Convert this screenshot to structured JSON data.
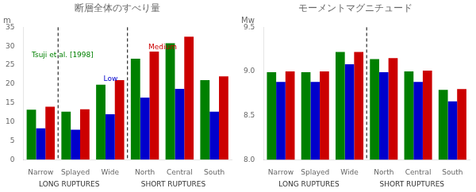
{
  "chart_data": [
    {
      "type": "bar",
      "title": "断層全体のすべり量",
      "ylabel": "m",
      "categories": [
        "Narrow",
        "Splayed",
        "Wide",
        "North",
        "Central",
        "South"
      ],
      "series": [
        {
          "color": "#008000",
          "values": [
            13.2,
            12.7,
            19.8,
            26.7,
            30.8,
            21.0
          ]
        },
        {
          "color": "#0000CC",
          "values": [
            8.3,
            7.9,
            12.0,
            16.4,
            18.7,
            12.7
          ]
        },
        {
          "color": "#CC0000",
          "values": [
            14.0,
            13.3,
            21.0,
            28.6,
            32.5,
            22.0
          ]
        }
      ],
      "ylim": [
        0,
        35
      ],
      "yticks": [
        0,
        5,
        10,
        15,
        20,
        25,
        30,
        35
      ],
      "grid": false,
      "annotations": [
        {
          "text": "Tsuji et al. [1998]",
          "color": "#008000"
        },
        {
          "text": "Low",
          "color": "#0000CC"
        },
        {
          "text": "Medium",
          "color": "#CC0000"
        },
        {
          "text": "LONG RUPTURES"
        },
        {
          "text": "SHORT RUPTURES"
        }
      ]
    },
    {
      "type": "bar",
      "title": "モーメントマグニチュード",
      "ylabel": "Mw",
      "categories": [
        "Narrow",
        "Splayed",
        "Wide",
        "North",
        "Central",
        "South"
      ],
      "series": [
        {
          "color": "#008000",
          "values": [
            8.99,
            8.99,
            9.22,
            9.14,
            9.0,
            8.79
          ]
        },
        {
          "color": "#0000CC",
          "values": [
            8.88,
            8.88,
            9.08,
            8.99,
            8.88,
            8.66
          ]
        },
        {
          "color": "#CC0000",
          "values": [
            9.0,
            9.0,
            9.22,
            9.15,
            9.01,
            8.8
          ]
        }
      ],
      "ylim": [
        8.0,
        9.5
      ],
      "yticks": [
        {
          "value": 8.0,
          "label": "8.0"
        },
        8.5,
        {
          "value": 9.0,
          "label": "9.0"
        },
        9.5
      ],
      "grid": false,
      "annotations": [
        {
          "text": "LONG RUPTURES"
        },
        {
          "text": "SHORT RUPTURES"
        }
      ]
    }
  ]
}
